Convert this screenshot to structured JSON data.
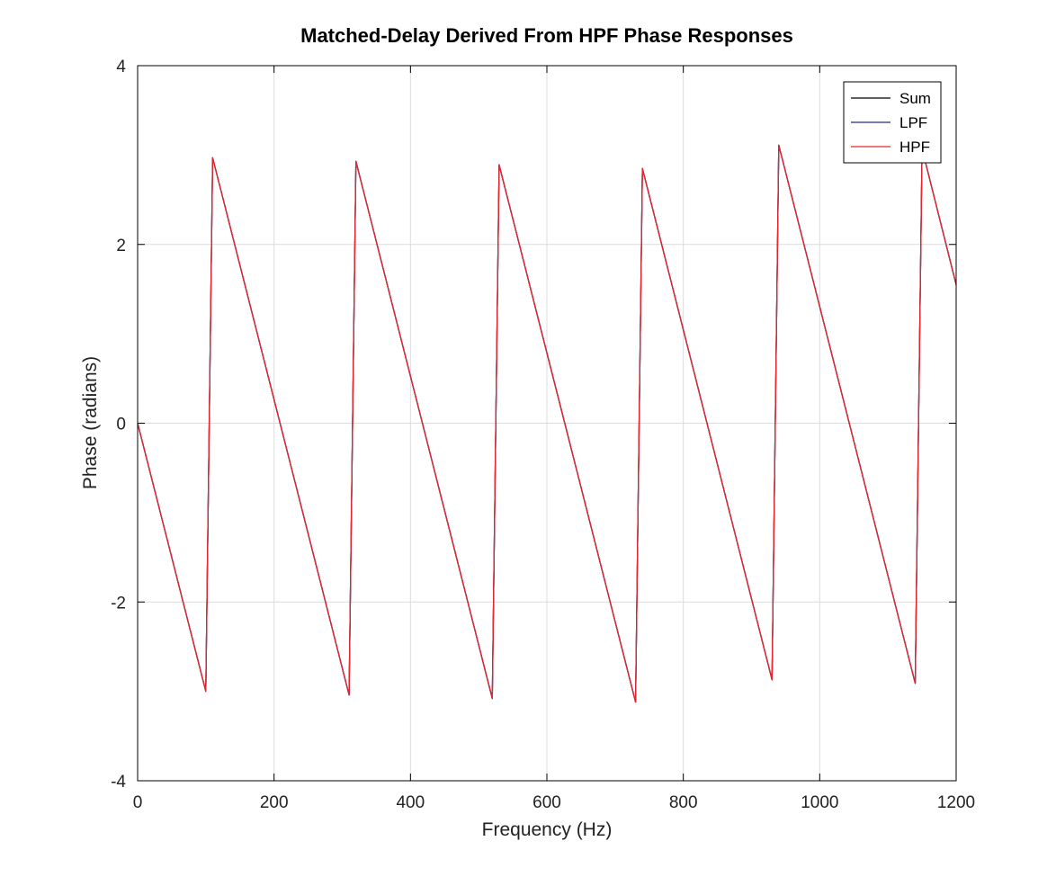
{
  "chart_data": {
    "type": "line",
    "title": "Matched-Delay Derived From HPF Phase Responses",
    "xlabel": "Frequency (Hz)",
    "ylabel": "Phase (radians)",
    "xlim": [
      0,
      1200
    ],
    "ylim": [
      -4,
      4
    ],
    "xticks": [
      0,
      200,
      400,
      600,
      800,
      1000,
      1200
    ],
    "yticks": [
      -4,
      -2,
      0,
      2,
      4
    ],
    "xtick_labels": [
      "0",
      "200",
      "400",
      "600",
      "800",
      "1000",
      "1200"
    ],
    "ytick_labels": [
      "-4",
      "-2",
      "0",
      "2",
      "4"
    ],
    "grid": true,
    "legend_position": "top-right",
    "x": [
      0,
      100,
      110,
      310,
      320,
      520,
      530,
      730,
      740,
      930,
      940,
      1140,
      1150,
      1200
    ],
    "series": [
      {
        "name": "Sum",
        "color": "#000000",
        "values": [
          0,
          -3.0,
          2.97,
          -3.04,
          2.93,
          -3.08,
          2.89,
          -3.12,
          2.85,
          -2.87,
          3.11,
          -2.91,
          3.07,
          1.55
        ]
      },
      {
        "name": "LPF",
        "color": "#2b2b8f",
        "values": [
          0,
          -3.0,
          2.97,
          -3.04,
          2.93,
          -3.08,
          2.89,
          -3.12,
          2.85,
          -2.87,
          3.11,
          -2.91,
          3.07,
          1.55
        ]
      },
      {
        "name": "HPF",
        "color": "#e8262b",
        "values": [
          0,
          -3.0,
          2.97,
          -3.04,
          2.93,
          -3.08,
          2.89,
          -3.12,
          2.85,
          -2.87,
          3.11,
          -2.91,
          3.07,
          1.55
        ]
      }
    ]
  }
}
